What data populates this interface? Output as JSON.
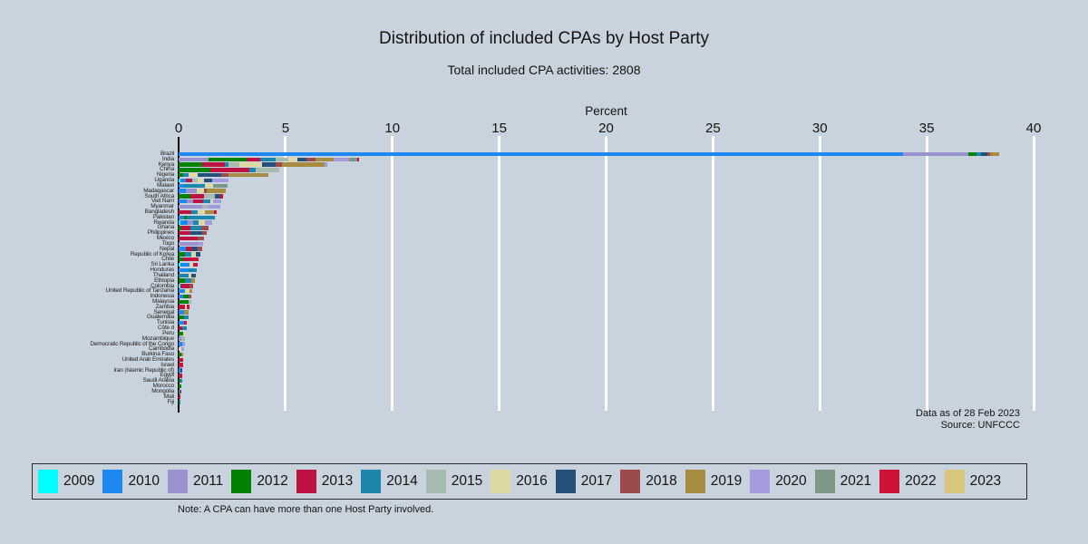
{
  "page": {
    "background": "#c8d3dd"
  },
  "chart_data": {
    "type": "bar",
    "orientation": "horizontal-stacked",
    "title": "Distribution of included CPAs by Host Party",
    "subtitle": "Total included CPA activities: 2808",
    "xlabel": "Percent",
    "xlim": [
      0,
      40
    ],
    "xticks": [
      0,
      5,
      10,
      15,
      20,
      25,
      30,
      35,
      40
    ],
    "grid": true,
    "legend_position": "bottom",
    "annotation_line1": "Data as of 28 Feb 2023",
    "annotation_line2": "Source: UNFCCC",
    "note": "Note: A CPA can have more than one Host Party involved.",
    "series": [
      {
        "name": "2009",
        "color": "#00ffff"
      },
      {
        "name": "2010",
        "color": "#1e87f0"
      },
      {
        "name": "2011",
        "color": "#9a91cf"
      },
      {
        "name": "2012",
        "color": "#028202"
      },
      {
        "name": "2013",
        "color": "#bd1343"
      },
      {
        "name": "2014",
        "color": "#1d86ad"
      },
      {
        "name": "2015",
        "color": "#a6bab0"
      },
      {
        "name": "2016",
        "color": "#ded8a2"
      },
      {
        "name": "2017",
        "color": "#24517b"
      },
      {
        "name": "2018",
        "color": "#9d4a4d"
      },
      {
        "name": "2019",
        "color": "#a68b40"
      },
      {
        "name": "2020",
        "color": "#a39bdb"
      },
      {
        "name": "2021",
        "color": "#7d9884"
      },
      {
        "name": "2022",
        "color": "#cf1336"
      },
      {
        "name": "2023",
        "color": "#d7c87e"
      }
    ],
    "rows": [
      {
        "label": "Brazil",
        "segments": [
          [
            "2010",
            33.9
          ],
          [
            "2011",
            3.05
          ],
          [
            "2012",
            0.38
          ],
          [
            "2014",
            0.2
          ],
          [
            "2017",
            0.3
          ],
          [
            "2018",
            0.15
          ],
          [
            "2019",
            0.4
          ]
        ]
      },
      {
        "label": "India",
        "segments": [
          [
            "2011",
            1.4
          ],
          [
            "2012",
            1.8
          ],
          [
            "2013",
            0.62
          ],
          [
            "2014",
            0.7
          ],
          [
            "2015",
            0.62
          ],
          [
            "2016",
            0.42
          ],
          [
            "2017",
            0.42
          ],
          [
            "2018",
            0.42
          ],
          [
            "2019",
            0.84
          ],
          [
            "2020",
            0.72
          ],
          [
            "2021",
            0.42
          ],
          [
            "2022",
            0.07
          ]
        ]
      },
      {
        "label": "Kenya",
        "segments": [
          [
            "2012",
            1.1
          ],
          [
            "2013",
            1.05
          ],
          [
            "2014",
            0.2
          ],
          [
            "2015",
            0.5
          ],
          [
            "2016",
            1.05
          ],
          [
            "2017",
            0.64
          ],
          [
            "2018",
            0.3
          ],
          [
            "2019",
            2.0
          ],
          [
            "2020",
            0.13
          ]
        ]
      },
      {
        "label": "China",
        "segments": [
          [
            "2012",
            1.5
          ],
          [
            "2013",
            1.8
          ],
          [
            "2014",
            0.3
          ],
          [
            "2015",
            1.1
          ]
        ]
      },
      {
        "label": "Nigeria",
        "segments": [
          [
            "2012",
            0.2
          ],
          [
            "2014",
            0.25
          ],
          [
            "2016",
            0.45
          ],
          [
            "2017",
            1.1
          ],
          [
            "2018",
            0.35
          ],
          [
            "2019",
            1.85
          ]
        ]
      },
      {
        "label": "Uganda",
        "segments": [
          [
            "2009",
            0.1
          ],
          [
            "2010",
            0.25
          ],
          [
            "2013",
            0.3
          ],
          [
            "2015",
            0.25
          ],
          [
            "2016",
            0.3
          ],
          [
            "2017",
            0.35
          ],
          [
            "2020",
            0.8
          ]
        ]
      },
      {
        "label": "Malawi",
        "segments": [
          [
            "2010",
            0.25
          ],
          [
            "2014",
            1.0
          ],
          [
            "2016",
            0.35
          ],
          [
            "2021",
            0.7
          ]
        ]
      },
      {
        "label": "Madagascar",
        "segments": [
          [
            "2010",
            0.35
          ],
          [
            "2011",
            0.5
          ],
          [
            "2016",
            0.35
          ],
          [
            "2018",
            0.1
          ],
          [
            "2019",
            0.9
          ]
        ]
      },
      {
        "label": "South Africa",
        "segments": [
          [
            "2012",
            0.55
          ],
          [
            "2013",
            0.65
          ],
          [
            "2015",
            0.5
          ],
          [
            "2017",
            0.25
          ],
          [
            "2022",
            0.15
          ]
        ]
      },
      {
        "label": "Viet Nam",
        "segments": [
          [
            "2010",
            0.4
          ],
          [
            "2011",
            0.3
          ],
          [
            "2013",
            0.45
          ],
          [
            "2014",
            0.35
          ],
          [
            "2016",
            0.1
          ],
          [
            "2020",
            0.4
          ]
        ]
      },
      {
        "label": "Myanmar",
        "segments": [
          [
            "2011",
            1.1
          ],
          [
            "2015",
            0.25
          ],
          [
            "2020",
            0.6
          ]
        ]
      },
      {
        "label": "Bangladesh",
        "segments": [
          [
            "2013",
            0.6
          ],
          [
            "2014",
            0.3
          ],
          [
            "2016",
            0.35
          ],
          [
            "2019",
            0.4
          ],
          [
            "2022",
            0.15
          ]
        ]
      },
      {
        "label": "Pakistan",
        "segments": [
          [
            "2010",
            0.25
          ],
          [
            "2012",
            0.15
          ],
          [
            "2014",
            1.3
          ]
        ]
      },
      {
        "label": "Rwanda",
        "segments": [
          [
            "2009",
            0.08
          ],
          [
            "2010",
            0.35
          ],
          [
            "2011",
            0.25
          ],
          [
            "2014",
            0.27
          ],
          [
            "2016",
            0.3
          ],
          [
            "2020",
            0.3
          ]
        ]
      },
      {
        "label": "Ghana",
        "segments": [
          [
            "2012",
            0.12
          ],
          [
            "2013",
            0.45
          ],
          [
            "2014",
            0.5
          ],
          [
            "2018",
            0.33
          ]
        ]
      },
      {
        "label": "Philippines",
        "segments": [
          [
            "2013",
            0.55
          ],
          [
            "2017",
            0.55
          ],
          [
            "2018",
            0.2
          ]
        ]
      },
      {
        "label": "Mexico",
        "segments": [
          [
            "2013",
            0.9
          ],
          [
            "2018",
            0.3
          ]
        ]
      },
      {
        "label": "Togo",
        "segments": [
          [
            "2011",
            0.9
          ],
          [
            "2020",
            0.25
          ]
        ]
      },
      {
        "label": "Nepal",
        "segments": [
          [
            "2010",
            0.35
          ],
          [
            "2013",
            0.3
          ],
          [
            "2017",
            0.25
          ],
          [
            "2018",
            0.2
          ]
        ]
      },
      {
        "label": "Republic of Korea",
        "segments": [
          [
            "2012",
            0.3
          ],
          [
            "2014",
            0.3
          ],
          [
            "2016",
            0.2
          ],
          [
            "2017",
            0.2
          ]
        ]
      },
      {
        "label": "Chile",
        "segments": [
          [
            "2012",
            0.2
          ],
          [
            "2013",
            0.45
          ],
          [
            "2022",
            0.3
          ]
        ]
      },
      {
        "label": "Sri Lanka",
        "segments": [
          [
            "2009",
            0.1
          ],
          [
            "2010",
            0.4
          ],
          [
            "2016",
            0.2
          ],
          [
            "2022",
            0.2
          ]
        ]
      },
      {
        "label": "Honduras",
        "segments": [
          [
            "2010",
            0.45
          ],
          [
            "2014",
            0.4
          ]
        ]
      },
      {
        "label": "Thailand",
        "segments": [
          [
            "2014",
            0.45
          ],
          [
            "2016",
            0.15
          ],
          [
            "2017",
            0.2
          ]
        ]
      },
      {
        "label": "Ethiopia",
        "segments": [
          [
            "2012",
            0.3
          ],
          [
            "2014",
            0.3
          ],
          [
            "2019",
            0.15
          ]
        ]
      },
      {
        "label": "Colombia",
        "segments": [
          [
            "2009",
            0.1
          ],
          [
            "2013",
            0.4
          ],
          [
            "2018",
            0.2
          ]
        ]
      },
      {
        "label": "United Republic of Tanzania",
        "segments": [
          [
            "2010",
            0.3
          ],
          [
            "2016",
            0.2
          ],
          [
            "2019",
            0.15
          ]
        ]
      },
      {
        "label": "Indonesia",
        "segments": [
          [
            "2010",
            0.2
          ],
          [
            "2012",
            0.25
          ],
          [
            "2018",
            0.15
          ]
        ]
      },
      {
        "label": "Malaysia",
        "segments": [
          [
            "2012",
            0.45
          ],
          [
            "2015",
            0.13
          ]
        ]
      },
      {
        "label": "Zambia",
        "segments": [
          [
            "2013",
            0.3
          ],
          [
            "2016",
            0.1
          ],
          [
            "2022",
            0.1
          ]
        ]
      },
      {
        "label": "Senegal",
        "segments": [
          [
            "2010",
            0.25
          ],
          [
            "2019",
            0.2
          ]
        ]
      },
      {
        "label": "Guatemala",
        "segments": [
          [
            "2012",
            0.25
          ],
          [
            "2014",
            0.2
          ]
        ]
      },
      {
        "label": "Tunisia",
        "segments": [
          [
            "2010",
            0.25
          ],
          [
            "2022",
            0.15
          ]
        ]
      },
      {
        "label": "Côte d",
        "segments": [
          [
            "2013",
            0.18
          ],
          [
            "2014",
            0.2
          ]
        ]
      },
      {
        "label": "Peru",
        "segments": [
          [
            "2012",
            0.2
          ],
          [
            "2016",
            0.15
          ]
        ]
      },
      {
        "label": "Mozambique",
        "segments": [
          [
            "2011",
            0.12
          ],
          [
            "2015",
            0.18
          ]
        ]
      },
      {
        "label": "Democratic Republic of the Congo",
        "segments": [
          [
            "2010",
            0.16
          ],
          [
            "2020",
            0.12
          ]
        ]
      },
      {
        "label": "Cambodia",
        "segments": [
          [
            "2016",
            0.13
          ],
          [
            "2020",
            0.12
          ]
        ]
      },
      {
        "label": "Burkina Faso",
        "segments": [
          [
            "2012",
            0.12
          ],
          [
            "2019",
            0.1
          ]
        ]
      },
      {
        "label": "United Arab Emirates",
        "segments": [
          [
            "2013",
            0.2
          ]
        ]
      },
      {
        "label": "Israel",
        "segments": [
          [
            "2013",
            0.1
          ],
          [
            "2022",
            0.1
          ]
        ]
      },
      {
        "label": "Iran (Islamic Republic of)",
        "segments": [
          [
            "2010",
            0.08
          ],
          [
            "2017",
            0.1
          ]
        ]
      },
      {
        "label": "Egypt",
        "segments": [
          [
            "2013",
            0.15
          ]
        ]
      },
      {
        "label": "Saudi Arabia",
        "segments": [
          [
            "2012",
            0.08
          ],
          [
            "2014",
            0.07
          ]
        ]
      },
      {
        "label": "Morocco",
        "segments": [
          [
            "2012",
            0.12
          ]
        ]
      },
      {
        "label": "Mongolia",
        "segments": [
          [
            "2014",
            0.07
          ],
          [
            "2022",
            0.05
          ]
        ]
      },
      {
        "label": "Mali",
        "segments": [
          [
            "2013",
            0.1
          ]
        ]
      },
      {
        "label": "Fiji",
        "segments": [
          [
            "2012",
            0.05
          ],
          [
            "2014",
            0.05
          ]
        ]
      }
    ]
  }
}
